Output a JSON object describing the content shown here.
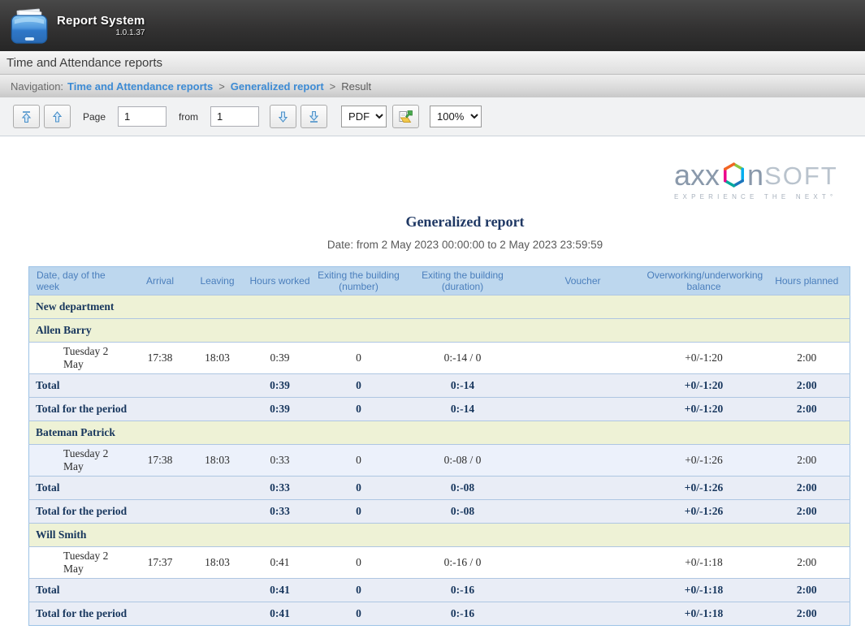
{
  "app": {
    "title": "Report System",
    "version": "1.0.1.37",
    "logo_icon": "blue-folder-documents-icon"
  },
  "module_bar": {
    "title": "Time and Attendance reports"
  },
  "breadcrumb": {
    "label": "Navigation:",
    "link1": "Time and Attendance reports",
    "link2": "Generalized report",
    "separator": ">",
    "current": "Result"
  },
  "toolbar": {
    "page_label": "Page",
    "page_value": "1",
    "from_label": "from",
    "pages_total_value": "1",
    "format_value": "PDF",
    "zoom_value": "100%",
    "icons": {
      "first_page": "arrow-up-with-bar-icon",
      "prev_page": "arrow-up-icon",
      "next_page": "arrow-down-icon",
      "last_page": "arrow-down-with-bar-icon",
      "export": "export-report-folder-icon"
    }
  },
  "vendor_logo": {
    "part1": "axx",
    "part2": "n",
    "part3": "SOFT",
    "hexagon": "multicolor-hexagon-o",
    "tagline": "EXPERIENCE THE NEXT°"
  },
  "report": {
    "title": "Generalized report",
    "date_line": "Date: from 2 May 2023 00:00:00 to 2 May 2023 23:59:59"
  },
  "table": {
    "columns": [
      "Date, day of the week",
      "Arrival",
      "Leaving",
      "Hours worked",
      "Exiting the building (number)",
      "Exiting the building (duration)",
      "Voucher",
      "Overworking/underworking balance",
      "Hours planned"
    ],
    "rows": [
      {
        "type": "group",
        "label": "New department"
      },
      {
        "type": "group",
        "label": "Allen Barry"
      },
      {
        "type": "data",
        "alt": false,
        "cells": [
          "Tuesday 2 May",
          "17:38",
          "18:03",
          "0:39",
          "0",
          "0:-14 / 0",
          "",
          "+0/-1:20",
          "2:00"
        ]
      },
      {
        "type": "total",
        "cells": [
          "Total",
          "",
          "",
          "0:39",
          "0",
          "0:-14",
          "",
          "+0/-1:20",
          "2:00"
        ]
      },
      {
        "type": "total",
        "cells": [
          "Total for the period",
          "",
          "",
          "0:39",
          "0",
          "0:-14",
          "",
          "+0/-1:20",
          "2:00"
        ]
      },
      {
        "type": "group",
        "label": "Bateman Patrick"
      },
      {
        "type": "data",
        "alt": true,
        "cells": [
          "Tuesday 2 May",
          "17:38",
          "18:03",
          "0:33",
          "0",
          "0:-08 / 0",
          "",
          "+0/-1:26",
          "2:00"
        ]
      },
      {
        "type": "total",
        "cells": [
          "Total",
          "",
          "",
          "0:33",
          "0",
          "0:-08",
          "",
          "+0/-1:26",
          "2:00"
        ]
      },
      {
        "type": "total",
        "cells": [
          "Total for the period",
          "",
          "",
          "0:33",
          "0",
          "0:-08",
          "",
          "+0/-1:26",
          "2:00"
        ]
      },
      {
        "type": "group",
        "label": "Will Smith"
      },
      {
        "type": "data",
        "alt": false,
        "cells": [
          "Tuesday 2 May",
          "17:37",
          "18:03",
          "0:41",
          "0",
          "0:-16 / 0",
          "",
          "+0/-1:18",
          "2:00"
        ]
      },
      {
        "type": "total",
        "cells": [
          "Total",
          "",
          "",
          "0:41",
          "0",
          "0:-16",
          "",
          "+0/-1:18",
          "2:00"
        ]
      },
      {
        "type": "total",
        "cells": [
          "Total for the period",
          "",
          "",
          "0:41",
          "0",
          "0:-16",
          "",
          "+0/-1:18",
          "2:00"
        ]
      }
    ]
  },
  "colors": {
    "accent_link_blue": "#3d8bd4",
    "table_header_bg": "#bdd7ee",
    "table_header_text": "#4a7ebc",
    "group_row_bg": "#eef2d6",
    "total_row_bg": "#e9edf6",
    "alt_data_row_bg": "#ecf1fb",
    "navy_text": "#17365d",
    "table_border": "#9dc3e6",
    "arrow_icon_blue": "#4a90c8"
  }
}
